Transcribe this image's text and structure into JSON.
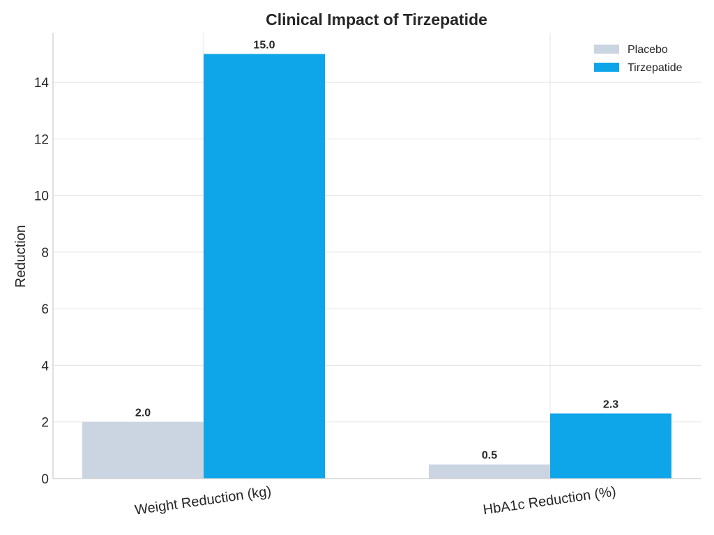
{
  "chart_data": {
    "type": "bar",
    "title": "Clinical Impact of Tirzepatide",
    "xlabel": "",
    "ylabel": "Reduction",
    "categories": [
      "Weight Reduction (kg)",
      "HbA1c Reduction (%)"
    ],
    "series": [
      {
        "name": "Placebo",
        "values": [
          2.0,
          0.5
        ],
        "color": "#cbd5e1"
      },
      {
        "name": "Tirzepatide",
        "values": [
          15.0,
          2.3
        ],
        "color": "#0ea5e9"
      }
    ],
    "data_labels": [
      [
        "2.0",
        "0.5"
      ],
      [
        "15.0",
        "2.3"
      ]
    ],
    "ylim": [
      0,
      15.75
    ],
    "yticks": [
      0,
      2,
      4,
      6,
      8,
      10,
      12,
      14
    ],
    "grid": true,
    "legend_position": "top-right"
  }
}
